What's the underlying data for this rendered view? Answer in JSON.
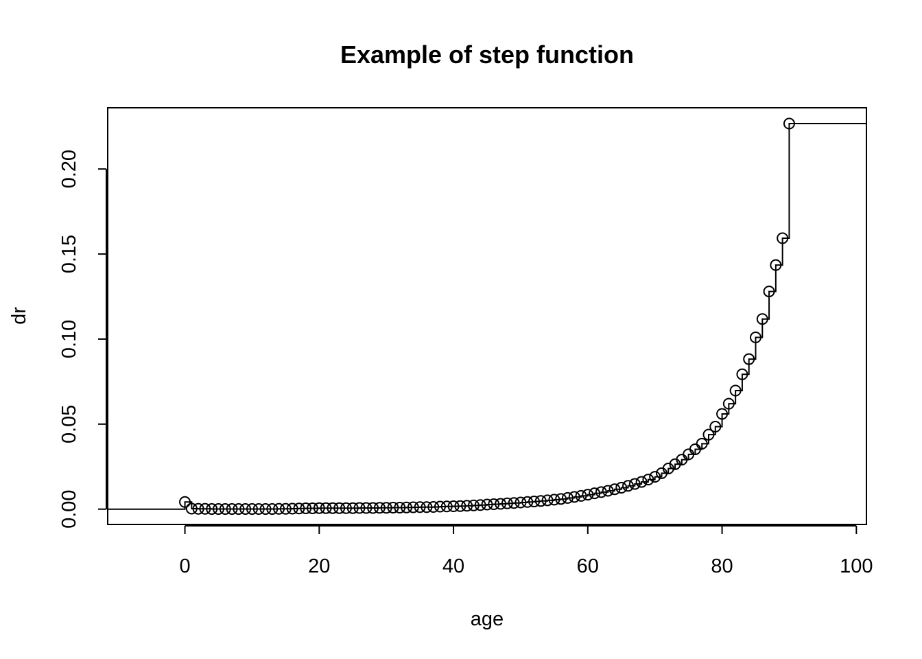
{
  "chart_data": {
    "type": "line",
    "subtype": "step",
    "title": "Example of step function",
    "xlabel": "age",
    "ylabel": "dr",
    "xlim": [
      -11.5,
      101.5
    ],
    "ylim": [
      -0.009,
      0.236
    ],
    "x_ticks": [
      0,
      20,
      40,
      60,
      80,
      100
    ],
    "x_tick_labels": [
      "0",
      "20",
      "40",
      "60",
      "80",
      "100"
    ],
    "y_ticks": [
      0.0,
      0.05,
      0.1,
      0.15,
      0.2
    ],
    "y_tick_labels": [
      "0.00",
      "0.05",
      "0.10",
      "0.15",
      "0.20"
    ],
    "grid": false,
    "legend": "none",
    "left_level": 0.0,
    "x": [
      0,
      1,
      2,
      3,
      4,
      5,
      6,
      7,
      8,
      9,
      10,
      11,
      12,
      13,
      14,
      15,
      16,
      17,
      18,
      19,
      20,
      21,
      22,
      23,
      24,
      25,
      26,
      27,
      28,
      29,
      30,
      31,
      32,
      33,
      34,
      35,
      36,
      37,
      38,
      39,
      40,
      41,
      42,
      43,
      44,
      45,
      46,
      47,
      48,
      49,
      50,
      51,
      52,
      53,
      54,
      55,
      56,
      57,
      58,
      59,
      60,
      61,
      62,
      63,
      64,
      65,
      66,
      67,
      68,
      69,
      70,
      71,
      72,
      73,
      74,
      75,
      76,
      77,
      78,
      79,
      80,
      81,
      82,
      83,
      84,
      85,
      86,
      87,
      88,
      89,
      90
    ],
    "y": [
      0.0042,
      0.0003,
      0.0002,
      0.0002,
      0.0001,
      0.0001,
      0.0001,
      0.0001,
      0.0001,
      0.0001,
      0.0001,
      0.0001,
      0.0001,
      0.0001,
      0.0002,
      0.0002,
      0.0003,
      0.0004,
      0.0005,
      0.0005,
      0.0006,
      0.0006,
      0.0006,
      0.0006,
      0.0006,
      0.0006,
      0.0007,
      0.0007,
      0.0007,
      0.0008,
      0.0008,
      0.0009,
      0.0009,
      0.001,
      0.0011,
      0.0012,
      0.0012,
      0.0013,
      0.0015,
      0.0016,
      0.0017,
      0.0018,
      0.002,
      0.0022,
      0.0024,
      0.0027,
      0.0029,
      0.0031,
      0.0034,
      0.0036,
      0.0039,
      0.0042,
      0.0045,
      0.0048,
      0.0052,
      0.0056,
      0.006,
      0.0066,
      0.0072,
      0.0078,
      0.0085,
      0.0093,
      0.01,
      0.0108,
      0.0117,
      0.0126,
      0.0137,
      0.0148,
      0.016,
      0.0174,
      0.019,
      0.0211,
      0.0239,
      0.0264,
      0.0291,
      0.0322,
      0.0352,
      0.0385,
      0.0438,
      0.0485,
      0.056,
      0.062,
      0.0697,
      0.0793,
      0.0882,
      0.101,
      0.1118,
      0.128,
      0.1435,
      0.1593,
      0.2267
    ],
    "right_extend_to": 101.5
  }
}
